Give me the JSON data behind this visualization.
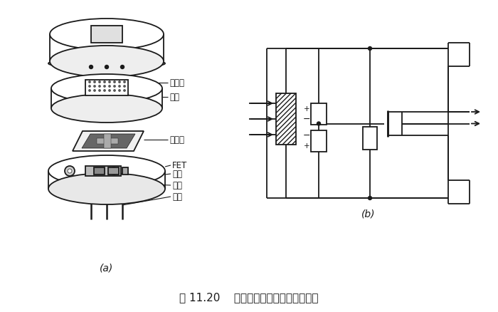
{
  "title": "图 11.20    热释电人体红外传感器的结构",
  "label_a": "(a)",
  "label_b": "(b)",
  "bg_color": "#ffffff",
  "line_color": "#1a1a1a",
  "labels": {
    "filter": "滤光片",
    "cap": "管帽",
    "sensing": "敏感元",
    "fet": "FET",
    "socket": "管座",
    "resistor": "高阻",
    "lead": "引线"
  }
}
